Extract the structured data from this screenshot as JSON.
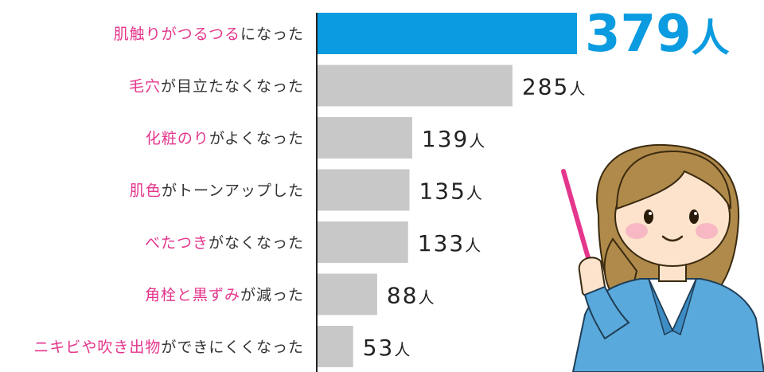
{
  "chart_data": {
    "type": "bar",
    "orientation": "horizontal",
    "unit": "人",
    "categories": [
      {
        "highlight": "肌触りがつるつる",
        "rest": "になった"
      },
      {
        "highlight": "毛穴",
        "rest": "が目立たなくなった"
      },
      {
        "highlight": "化粧のり",
        "rest": "がよくなった"
      },
      {
        "highlight": "肌色",
        "rest": "がトーンアップした"
      },
      {
        "highlight": "べたつき",
        "rest": "がなくなった"
      },
      {
        "highlight": "角栓と黒ずみ",
        "rest": "が減った"
      },
      {
        "highlight": "ニキビや吹き出物",
        "rest": "ができにくくなった"
      }
    ],
    "values": [
      379,
      285,
      139,
      135,
      133,
      88,
      53
    ],
    "xlim": [
      0,
      379
    ],
    "highlighted_index": 0,
    "grid": false,
    "legend": "none"
  },
  "colors": {
    "highlight_bar": "#0a9be0",
    "bar": "#c8c8c8",
    "label_highlight": "#e4368c",
    "label_text": "#333333",
    "axis": "#222222"
  },
  "illustration": {
    "subject": "woman-with-pointer",
    "icon": "teacher-pointing-icon"
  }
}
